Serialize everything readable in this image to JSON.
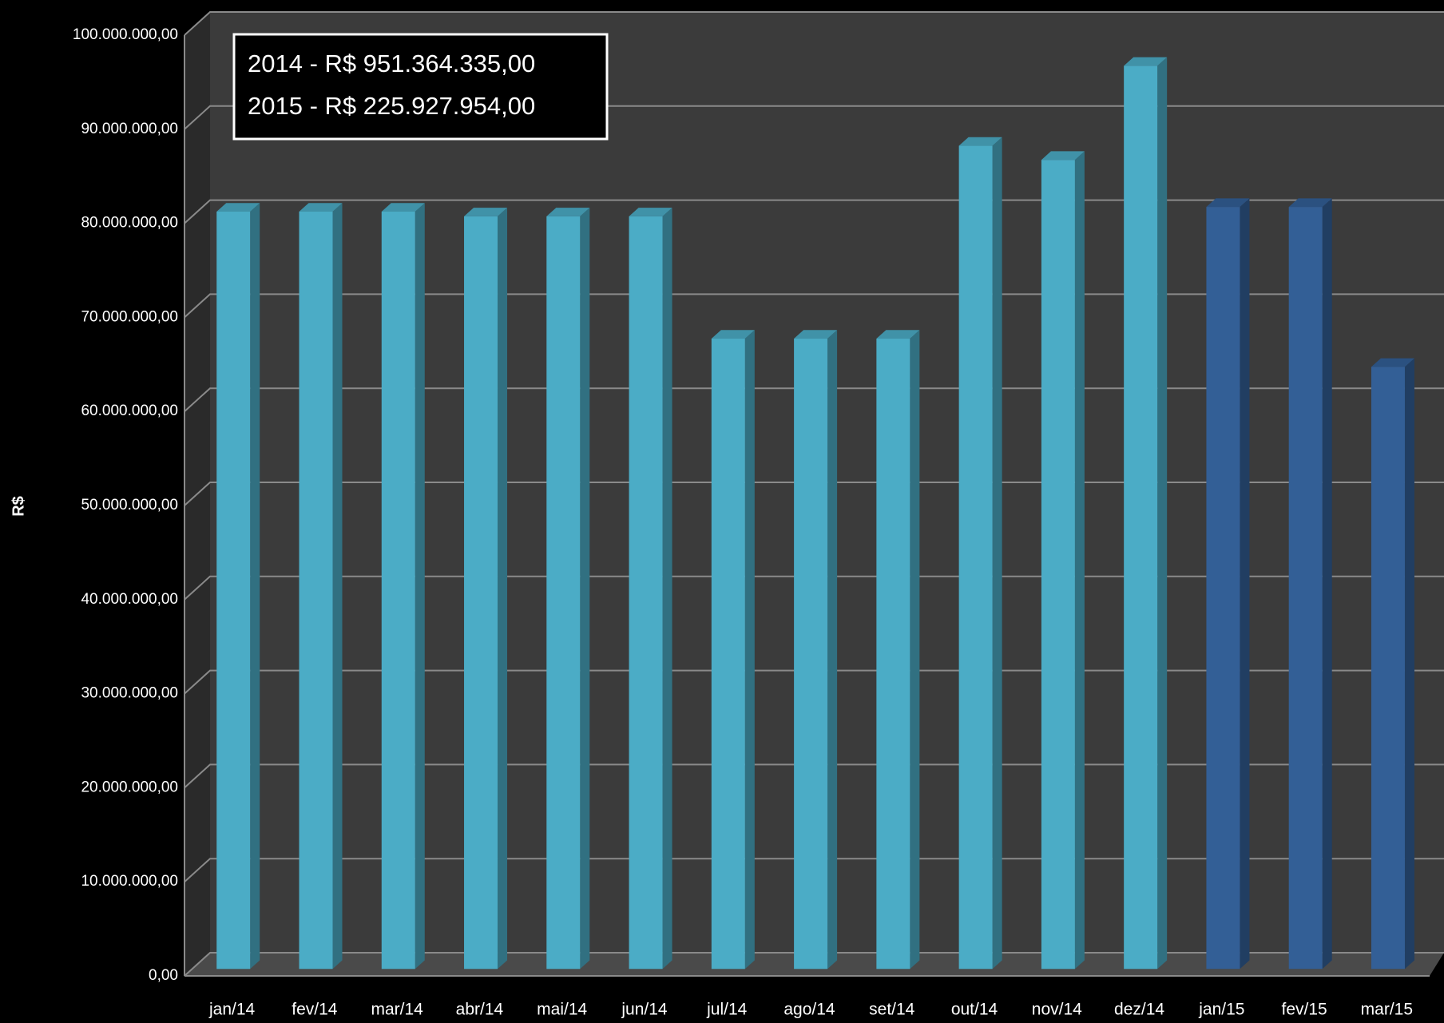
{
  "chart_data": {
    "type": "bar",
    "y_label": "R$",
    "annotations": [
      "2014 - R$ 951.364.335,00",
      "2015 - R$ 225.927.954,00"
    ],
    "categories": [
      "jan/14",
      "fev/14",
      "mar/14",
      "abr/14",
      "mai/14",
      "jun/14",
      "jul/14",
      "ago/14",
      "set/14",
      "out/14",
      "nov/14",
      "dez/14",
      "jan/15",
      "fev/15",
      "mar/15"
    ],
    "values": [
      80500000,
      80500000,
      80500000,
      80000000,
      80000000,
      80000000,
      67000000,
      67000000,
      67000000,
      87500000,
      86000000,
      96000000,
      81000000,
      81000000,
      64000000
    ],
    "colors": [
      "#4bacc6",
      "#4bacc6",
      "#4bacc6",
      "#4bacc6",
      "#4bacc6",
      "#4bacc6",
      "#4bacc6",
      "#4bacc6",
      "#4bacc6",
      "#4bacc6",
      "#4bacc6",
      "#4bacc6",
      "#335f96",
      "#335f96",
      "#335f96"
    ],
    "ylim": [
      0,
      100000000
    ],
    "yticks": [
      {
        "value": 0,
        "label": "0,00"
      },
      {
        "value": 10000000,
        "label": "10.000.000,00"
      },
      {
        "value": 20000000,
        "label": "20.000.000,00"
      },
      {
        "value": 30000000,
        "label": "30.000.000,00"
      },
      {
        "value": 40000000,
        "label": "40.000.000,00"
      },
      {
        "value": 50000000,
        "label": "50.000.000,00"
      },
      {
        "value": 60000000,
        "label": "60.000.000,00"
      },
      {
        "value": 70000000,
        "label": "70.000.000,00"
      },
      {
        "value": 80000000,
        "label": "80.000.000,00"
      },
      {
        "value": 90000000,
        "label": "90.000.000,00"
      },
      {
        "value": 100000000,
        "label": "100.000.000,00"
      }
    ],
    "grid": true
  }
}
